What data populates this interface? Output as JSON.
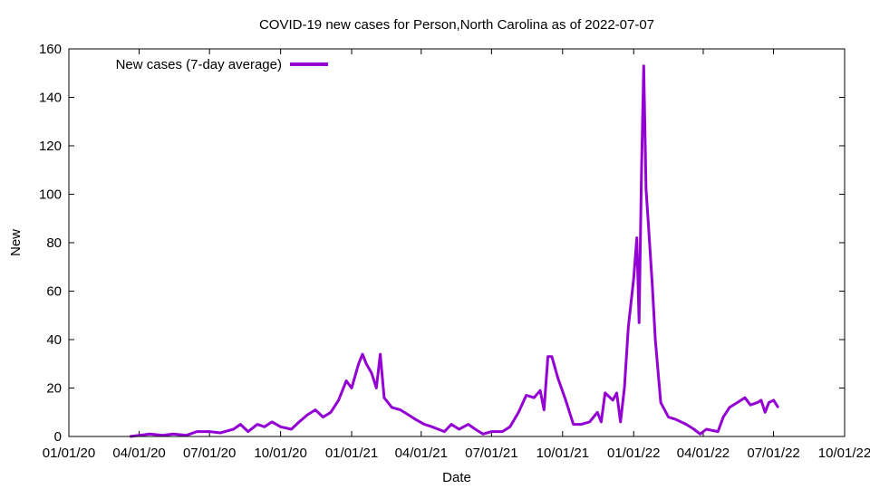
{
  "chart_data": {
    "type": "line",
    "title": "COVID-19 new cases for Person,North Carolina as of 2022-07-07",
    "xlabel": "Date",
    "ylabel": "New",
    "x_range": [
      "2020-01-01",
      "2022-10-01"
    ],
    "ylim": [
      0,
      160
    ],
    "x_tick_labels": [
      "01/01/20",
      "04/01/20",
      "07/01/20",
      "10/01/20",
      "01/01/21",
      "04/01/21",
      "07/01/21",
      "10/01/21",
      "01/01/22",
      "04/01/22",
      "07/01/22",
      "10/01/22"
    ],
    "y_ticks": [
      0,
      20,
      40,
      60,
      80,
      100,
      120,
      140,
      160
    ],
    "grid": false,
    "legend_position": "top-left",
    "series": [
      {
        "name": "New cases (7-day average)",
        "color": "#9400d3",
        "points": [
          [
            "2020-03-20",
            0
          ],
          [
            "2020-04-01",
            0.5
          ],
          [
            "2020-04-15",
            1
          ],
          [
            "2020-05-01",
            0.5
          ],
          [
            "2020-05-15",
            1
          ],
          [
            "2020-06-01",
            0.5
          ],
          [
            "2020-06-15",
            2
          ],
          [
            "2020-07-01",
            2
          ],
          [
            "2020-07-15",
            1.5
          ],
          [
            "2020-08-01",
            3
          ],
          [
            "2020-08-10",
            5
          ],
          [
            "2020-08-20",
            2
          ],
          [
            "2020-09-01",
            5
          ],
          [
            "2020-09-10",
            4
          ],
          [
            "2020-09-20",
            6
          ],
          [
            "2020-10-01",
            4
          ],
          [
            "2020-10-15",
            3
          ],
          [
            "2020-10-25",
            6
          ],
          [
            "2020-11-05",
            9
          ],
          [
            "2020-11-15",
            11
          ],
          [
            "2020-11-25",
            8
          ],
          [
            "2020-12-05",
            10
          ],
          [
            "2020-12-15",
            15
          ],
          [
            "2020-12-25",
            23
          ],
          [
            "2021-01-01",
            20
          ],
          [
            "2021-01-10",
            30
          ],
          [
            "2021-01-15",
            34
          ],
          [
            "2021-01-20",
            30
          ],
          [
            "2021-01-27",
            26
          ],
          [
            "2021-02-02",
            20
          ],
          [
            "2021-02-07",
            34
          ],
          [
            "2021-02-12",
            16
          ],
          [
            "2021-02-22",
            12
          ],
          [
            "2021-03-05",
            11
          ],
          [
            "2021-03-15",
            9
          ],
          [
            "2021-03-25",
            7
          ],
          [
            "2021-04-05",
            5
          ],
          [
            "2021-04-15",
            4
          ],
          [
            "2021-05-01",
            2
          ],
          [
            "2021-05-10",
            5
          ],
          [
            "2021-05-20",
            3
          ],
          [
            "2021-06-01",
            5
          ],
          [
            "2021-06-10",
            3
          ],
          [
            "2021-06-20",
            1
          ],
          [
            "2021-07-01",
            2
          ],
          [
            "2021-07-15",
            2
          ],
          [
            "2021-07-25",
            4
          ],
          [
            "2021-08-05",
            10
          ],
          [
            "2021-08-15",
            17
          ],
          [
            "2021-08-25",
            16
          ],
          [
            "2021-09-02",
            19
          ],
          [
            "2021-09-07",
            11
          ],
          [
            "2021-09-12",
            33
          ],
          [
            "2021-09-17",
            33
          ],
          [
            "2021-09-25",
            24
          ],
          [
            "2021-10-05",
            15
          ],
          [
            "2021-10-15",
            5
          ],
          [
            "2021-10-25",
            5
          ],
          [
            "2021-11-05",
            6
          ],
          [
            "2021-11-15",
            10
          ],
          [
            "2021-11-20",
            6
          ],
          [
            "2021-11-25",
            18
          ],
          [
            "2021-12-05",
            15
          ],
          [
            "2021-12-10",
            18
          ],
          [
            "2021-12-15",
            6
          ],
          [
            "2021-12-20",
            20
          ],
          [
            "2021-12-25",
            45
          ],
          [
            "2022-01-01",
            65
          ],
          [
            "2022-01-05",
            82
          ],
          [
            "2022-01-08",
            47
          ],
          [
            "2022-01-11",
            108
          ],
          [
            "2022-01-14",
            153
          ],
          [
            "2022-01-17",
            102
          ],
          [
            "2022-01-20",
            88
          ],
          [
            "2022-01-25",
            63
          ],
          [
            "2022-01-29",
            40
          ],
          [
            "2022-02-05",
            14
          ],
          [
            "2022-02-15",
            8
          ],
          [
            "2022-02-25",
            7
          ],
          [
            "2022-03-10",
            5
          ],
          [
            "2022-03-20",
            3
          ],
          [
            "2022-03-28",
            1
          ],
          [
            "2022-04-05",
            3
          ],
          [
            "2022-04-20",
            2
          ],
          [
            "2022-04-27",
            8
          ],
          [
            "2022-05-05",
            12
          ],
          [
            "2022-05-15",
            14
          ],
          [
            "2022-05-25",
            16
          ],
          [
            "2022-06-01",
            13
          ],
          [
            "2022-06-10",
            14
          ],
          [
            "2022-06-15",
            15
          ],
          [
            "2022-06-20",
            10
          ],
          [
            "2022-06-25",
            14
          ],
          [
            "2022-07-01",
            15
          ],
          [
            "2022-07-07",
            12
          ]
        ]
      }
    ]
  }
}
